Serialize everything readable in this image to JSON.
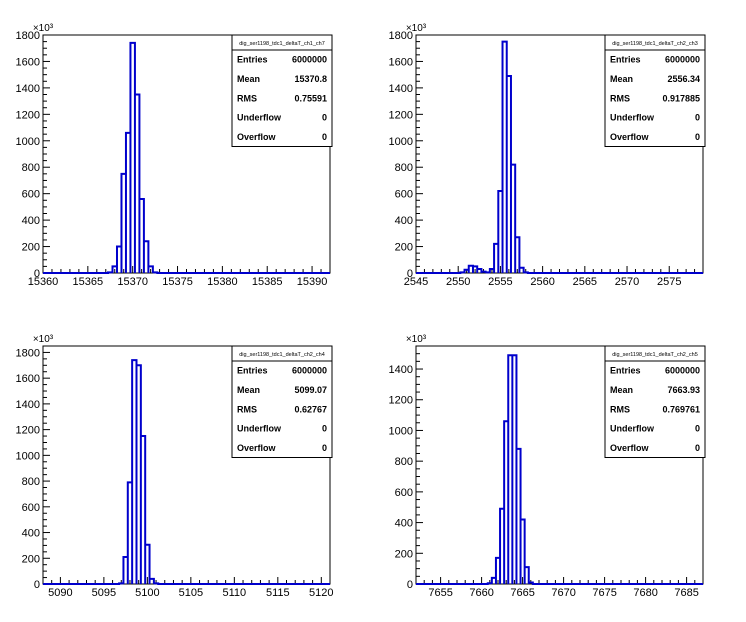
{
  "chart_data": [
    {
      "type": "histogram",
      "exponent_label": "×10³",
      "stats": {
        "title": "dig_ser1198_tdc1_deltaT_ch1_ch7",
        "rows": [
          {
            "label": "Entries",
            "value": "6000000"
          },
          {
            "label": "Mean",
            "value": "15370.8"
          },
          {
            "label": "RMS",
            "value": "0.75591"
          },
          {
            "label": "Underflow",
            "value": "0"
          },
          {
            "label": "Overflow",
            "value": "0"
          }
        ]
      },
      "xlim": [
        15360,
        15392
      ],
      "ylim": [
        0,
        1800
      ],
      "x_ticks": [
        15360,
        15365,
        15370,
        15375,
        15380,
        15385,
        15390
      ],
      "y_ticks": [
        0,
        200,
        400,
        600,
        800,
        1000,
        1200,
        1400,
        1600,
        1800
      ],
      "bin_width": 0.5,
      "bins": [
        {
          "x": 15367.5,
          "y": 5
        },
        {
          "x": 15368.0,
          "y": 50
        },
        {
          "x": 15368.5,
          "y": 200
        },
        {
          "x": 15369.0,
          "y": 750
        },
        {
          "x": 15369.5,
          "y": 1060
        },
        {
          "x": 15370.0,
          "y": 1740
        },
        {
          "x": 15370.5,
          "y": 1350
        },
        {
          "x": 15371.0,
          "y": 560
        },
        {
          "x": 15371.5,
          "y": 240
        },
        {
          "x": 15372.0,
          "y": 50
        },
        {
          "x": 15372.5,
          "y": 5
        }
      ]
    },
    {
      "type": "histogram",
      "exponent_label": "×10³",
      "stats": {
        "title": "dig_ser1198_tdc1_deltaT_ch2_ch3",
        "rows": [
          {
            "label": "Entries",
            "value": "6000000"
          },
          {
            "label": "Mean",
            "value": "2556.34"
          },
          {
            "label": "RMS",
            "value": "0.917885"
          },
          {
            "label": "Underflow",
            "value": "0"
          },
          {
            "label": "Overflow",
            "value": "0"
          }
        ]
      },
      "xlim": [
        2545,
        2579
      ],
      "ylim": [
        0,
        1800
      ],
      "x_ticks": [
        2545,
        2550,
        2555,
        2560,
        2565,
        2570,
        2575
      ],
      "y_ticks": [
        0,
        200,
        400,
        600,
        800,
        1000,
        1200,
        1400,
        1600,
        1800
      ],
      "bin_width": 0.5,
      "bins": [
        {
          "x": 2550.5,
          "y": 5
        },
        {
          "x": 2551.0,
          "y": 25
        },
        {
          "x": 2551.5,
          "y": 55
        },
        {
          "x": 2552.0,
          "y": 50
        },
        {
          "x": 2552.5,
          "y": 30
        },
        {
          "x": 2553.0,
          "y": 10
        },
        {
          "x": 2553.5,
          "y": 5
        },
        {
          "x": 2554.0,
          "y": 30
        },
        {
          "x": 2554.5,
          "y": 220
        },
        {
          "x": 2555.0,
          "y": 620
        },
        {
          "x": 2555.5,
          "y": 1750
        },
        {
          "x": 2556.0,
          "y": 1490
        },
        {
          "x": 2556.5,
          "y": 820
        },
        {
          "x": 2557.0,
          "y": 270
        },
        {
          "x": 2557.5,
          "y": 40
        },
        {
          "x": 2558.0,
          "y": 5
        }
      ]
    },
    {
      "type": "histogram",
      "exponent_label": "×10³",
      "stats": {
        "title": "dig_ser1198_tdc1_deltaT_ch2_ch4",
        "rows": [
          {
            "label": "Entries",
            "value": "6000000"
          },
          {
            "label": "Mean",
            "value": "5099.07"
          },
          {
            "label": "RMS",
            "value": "0.62767"
          },
          {
            "label": "Underflow",
            "value": "0"
          },
          {
            "label": "Overflow",
            "value": "0"
          }
        ]
      },
      "xlim": [
        5088,
        5121
      ],
      "ylim": [
        0,
        1850
      ],
      "x_ticks": [
        5090,
        5095,
        5100,
        5105,
        5110,
        5115,
        5120
      ],
      "y_ticks": [
        0,
        200,
        400,
        600,
        800,
        1000,
        1200,
        1400,
        1600,
        1800
      ],
      "bin_width": 0.5,
      "bins": [
        {
          "x": 5097.0,
          "y": 5
        },
        {
          "x": 5097.5,
          "y": 210
        },
        {
          "x": 5098.0,
          "y": 790
        },
        {
          "x": 5098.5,
          "y": 1740
        },
        {
          "x": 5099.0,
          "y": 1700
        },
        {
          "x": 5099.5,
          "y": 1150
        },
        {
          "x": 5100.0,
          "y": 305
        },
        {
          "x": 5100.5,
          "y": 40
        },
        {
          "x": 5101.0,
          "y": 5
        }
      ]
    },
    {
      "type": "histogram",
      "exponent_label": "×10³",
      "stats": {
        "title": "dig_ser1198_tdc1_deltaT_ch2_ch5",
        "rows": [
          {
            "label": "Entries",
            "value": "6000000"
          },
          {
            "label": "Mean",
            "value": "7663.93"
          },
          {
            "label": "RMS",
            "value": "0.769761"
          },
          {
            "label": "Underflow",
            "value": "0"
          },
          {
            "label": "Overflow",
            "value": "0"
          }
        ]
      },
      "xlim": [
        7652,
        7687
      ],
      "ylim": [
        0,
        1550
      ],
      "x_ticks": [
        7655,
        7660,
        7665,
        7670,
        7675,
        7680,
        7685
      ],
      "y_ticks": [
        0,
        200,
        400,
        600,
        800,
        1000,
        1200,
        1400
      ],
      "bin_width": 0.5,
      "bins": [
        {
          "x": 7661.0,
          "y": 5
        },
        {
          "x": 7661.5,
          "y": 40
        },
        {
          "x": 7662.0,
          "y": 170
        },
        {
          "x": 7662.5,
          "y": 490
        },
        {
          "x": 7663.0,
          "y": 1060
        },
        {
          "x": 7663.5,
          "y": 1490
        },
        {
          "x": 7664.0,
          "y": 1490
        },
        {
          "x": 7664.5,
          "y": 880
        },
        {
          "x": 7665.0,
          "y": 420
        },
        {
          "x": 7665.5,
          "y": 110
        },
        {
          "x": 7666.0,
          "y": 10
        }
      ]
    }
  ],
  "colors": {
    "histogram_line": "#0000cc",
    "axis": "#000000",
    "background": "#ffffff"
  }
}
